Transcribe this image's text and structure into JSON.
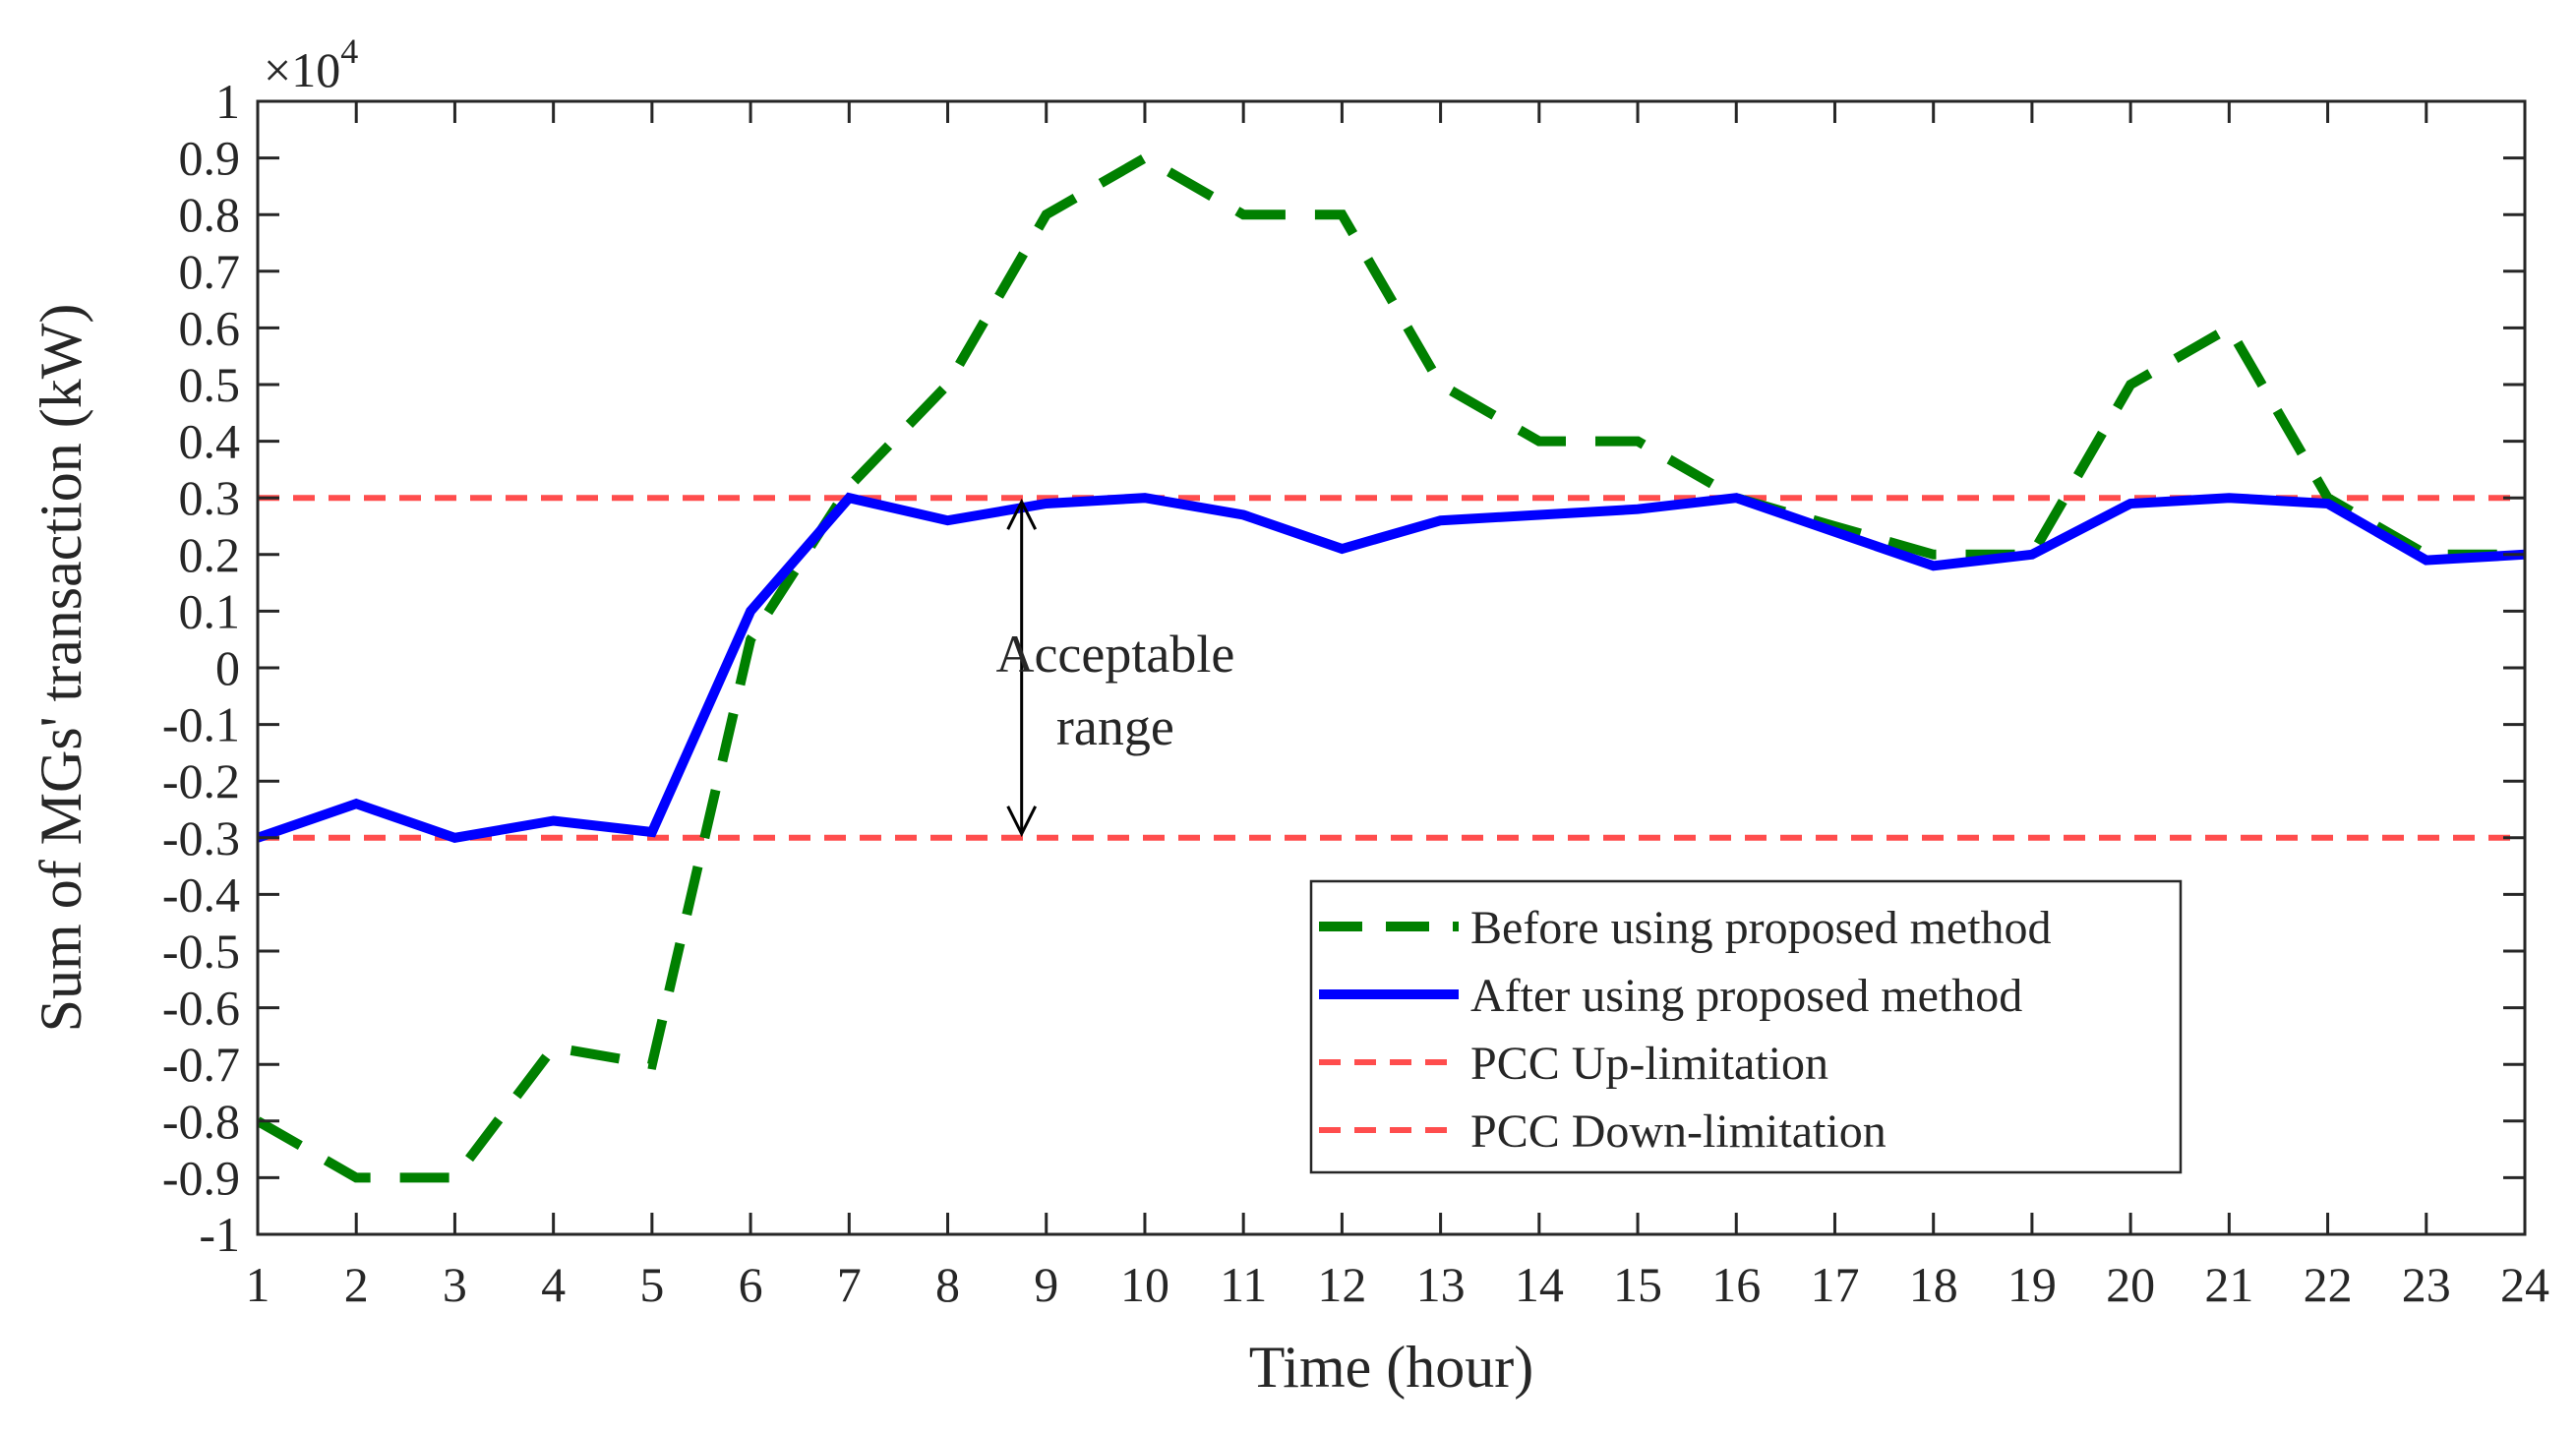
{
  "chart_data": {
    "type": "line",
    "title": "",
    "xlabel": "Time (hour)",
    "ylabel": "Sum of MGs' transaction (kW)",
    "exponent": {
      "base": "×10",
      "power": "4"
    },
    "xlim": [
      1,
      24
    ],
    "ylim": [
      -1,
      1
    ],
    "x": [
      1,
      2,
      3,
      4,
      5,
      6,
      7,
      8,
      9,
      10,
      11,
      12,
      13,
      14,
      15,
      16,
      17,
      18,
      19,
      20,
      21,
      22,
      23,
      24
    ],
    "xticks": [
      1,
      2,
      3,
      4,
      5,
      6,
      7,
      8,
      9,
      10,
      11,
      12,
      13,
      14,
      15,
      16,
      17,
      18,
      19,
      20,
      21,
      22,
      23,
      24
    ],
    "yticks": [
      {
        "value": 1,
        "label": "1"
      },
      {
        "value": 0.9,
        "label": "0.9"
      },
      {
        "value": 0.8,
        "label": "0.8"
      },
      {
        "value": 0.7,
        "label": "0.7"
      },
      {
        "value": 0.6,
        "label": "0.6"
      },
      {
        "value": 0.5,
        "label": "0.5"
      },
      {
        "value": 0.4,
        "label": "0.4"
      },
      {
        "value": 0.3,
        "label": "0.3"
      },
      {
        "value": 0.2,
        "label": "0.2"
      },
      {
        "value": 0.1,
        "label": "0.1"
      },
      {
        "value": 0,
        "label": "0"
      },
      {
        "value": -0.1,
        "label": "-0.1"
      },
      {
        "value": -0.2,
        "label": "-0.2"
      },
      {
        "value": -0.3,
        "label": "-0.3"
      },
      {
        "value": -0.4,
        "label": "-0.4"
      },
      {
        "value": -0.5,
        "label": "-0.5"
      },
      {
        "value": -0.6,
        "label": "-0.6"
      },
      {
        "value": -0.7,
        "label": "-0.7"
      },
      {
        "value": -0.8,
        "label": "-0.8"
      },
      {
        "value": -0.9,
        "label": "-0.9"
      },
      {
        "value": -1,
        "label": "-1"
      }
    ],
    "series": [
      {
        "name": "Before using proposed method",
        "style": "dashed",
        "color": "#008000",
        "values": [
          -0.8,
          -0.9,
          -0.9,
          -0.67,
          -0.7,
          0.05,
          0.32,
          0.5,
          0.8,
          0.9,
          0.8,
          0.8,
          0.5,
          0.4,
          0.4,
          0.3,
          0.25,
          0.2,
          0.2,
          0.5,
          0.6,
          0.3,
          0.2,
          0.2
        ]
      },
      {
        "name": "After using proposed method",
        "style": "solid",
        "color": "#0000ff",
        "values": [
          -0.3,
          -0.24,
          -0.3,
          -0.27,
          -0.29,
          0.1,
          0.3,
          0.26,
          0.29,
          0.3,
          0.27,
          0.21,
          0.26,
          0.27,
          0.28,
          0.3,
          0.24,
          0.18,
          0.2,
          0.29,
          0.3,
          0.29,
          0.19,
          0.2
        ]
      },
      {
        "name": "PCC Up-limitation",
        "style": "short-dashed",
        "color": "#ff4d4d",
        "values": [
          0.3,
          0.3,
          0.3,
          0.3,
          0.3,
          0.3,
          0.3,
          0.3,
          0.3,
          0.3,
          0.3,
          0.3,
          0.3,
          0.3,
          0.3,
          0.3,
          0.3,
          0.3,
          0.3,
          0.3,
          0.3,
          0.3,
          0.3,
          0.3
        ]
      },
      {
        "name": "PCC Down-limitation",
        "style": "short-dashed",
        "color": "#ff4d4d",
        "values": [
          -0.3,
          -0.3,
          -0.3,
          -0.3,
          -0.3,
          -0.3,
          -0.3,
          -0.3,
          -0.3,
          -0.3,
          -0.3,
          -0.3,
          -0.3,
          -0.3,
          -0.3,
          -0.3,
          -0.3,
          -0.3,
          -0.3,
          -0.3,
          -0.3,
          -0.3,
          -0.3,
          -0.3
        ]
      }
    ],
    "annotation": {
      "lines": [
        "Acceptable",
        "range"
      ],
      "arrow_x": 8.75,
      "arrow_from": 0.3,
      "arrow_to": -0.3,
      "text_x": 9.7
    },
    "legend": {
      "position": "bottom-right",
      "entries": [
        "Before using proposed method",
        "After using proposed method",
        "PCC Up-limitation",
        "PCC Down-limitation"
      ]
    }
  }
}
